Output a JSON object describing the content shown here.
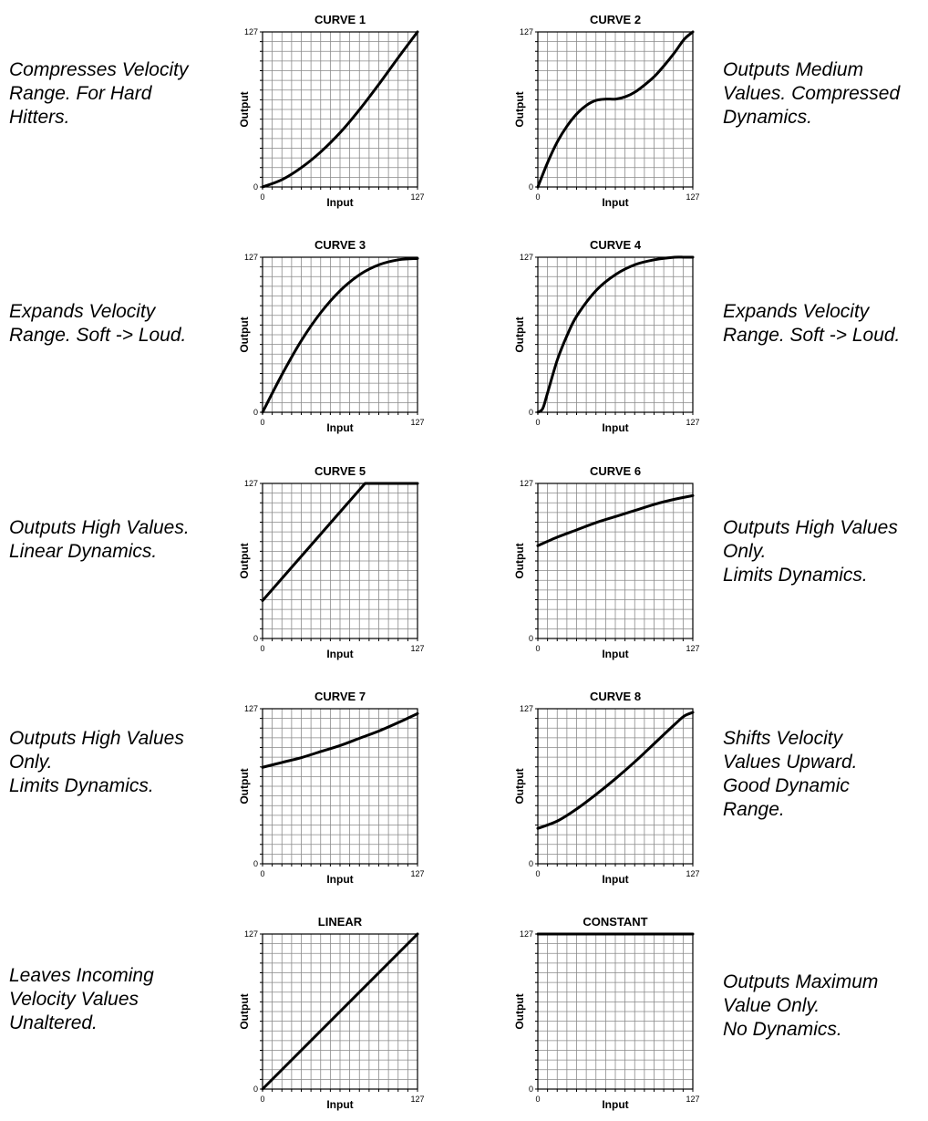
{
  "chart_data": [
    {
      "type": "line",
      "title": "CURVE 1",
      "xlabel": "Input",
      "ylabel": "Output",
      "xlim": [
        0,
        127
      ],
      "ylim": [
        0,
        127
      ],
      "x_ticks": [
        "0",
        "127"
      ],
      "y_ticks": [
        "0",
        "127"
      ],
      "grid": true,
      "x": [
        0,
        16,
        32,
        48,
        64,
        80,
        96,
        112,
        127
      ],
      "y": [
        0,
        6,
        16,
        29,
        45,
        64,
        85,
        107,
        127
      ],
      "description": [
        "Compresses Velocity",
        "Range. For Hard",
        "Hitters."
      ]
    },
    {
      "type": "line",
      "title": "CURVE 2",
      "xlabel": "Input",
      "ylabel": "Output",
      "xlim": [
        0,
        127
      ],
      "ylim": [
        0,
        127
      ],
      "x_ticks": [
        "0",
        "127"
      ],
      "y_ticks": [
        "0",
        "127"
      ],
      "grid": true,
      "x": [
        0,
        8,
        16,
        24,
        32,
        40,
        48,
        56,
        64,
        72,
        80,
        88,
        96,
        104,
        112,
        120,
        127
      ],
      "y": [
        0,
        20,
        37,
        50,
        60,
        67,
        71,
        72,
        72,
        74,
        78,
        84,
        91,
        100,
        110,
        121,
        127
      ],
      "description": [
        "Outputs Medium",
        "Values. Compressed",
        "Dynamics."
      ]
    },
    {
      "type": "line",
      "title": "CURVE 3",
      "xlabel": "Input",
      "ylabel": "Output",
      "xlim": [
        0,
        127
      ],
      "ylim": [
        0,
        127
      ],
      "x_ticks": [
        "0",
        "127"
      ],
      "y_ticks": [
        "0",
        "127"
      ],
      "grid": true,
      "x": [
        0,
        16,
        32,
        48,
        64,
        80,
        96,
        112,
        127
      ],
      "y": [
        0,
        31,
        59,
        82,
        100,
        113,
        121,
        125,
        126
      ],
      "description": [
        "Expands Velocity",
        "Range. Soft -> Loud."
      ]
    },
    {
      "type": "line",
      "title": "CURVE 4",
      "xlabel": "Input",
      "ylabel": "Output",
      "xlim": [
        0,
        127
      ],
      "ylim": [
        0,
        127
      ],
      "x_ticks": [
        "0",
        "127"
      ],
      "y_ticks": [
        "0",
        "127"
      ],
      "grid": true,
      "x": [
        0,
        4,
        8,
        16,
        24,
        32,
        48,
        64,
        80,
        96,
        112,
        120,
        127
      ],
      "y": [
        0,
        3,
        16,
        43,
        63,
        79,
        100,
        113,
        121,
        125,
        127,
        127,
        127
      ],
      "description": [
        "Expands Velocity",
        "Range. Soft -> Loud."
      ]
    },
    {
      "type": "line",
      "title": "CURVE 5",
      "xlabel": "Input",
      "ylabel": "Output",
      "xlim": [
        0,
        127
      ],
      "ylim": [
        0,
        127
      ],
      "x_ticks": [
        "0",
        "127"
      ],
      "y_ticks": [
        "0",
        "127"
      ],
      "grid": true,
      "x": [
        0,
        84,
        127
      ],
      "y": [
        31,
        127,
        127
      ],
      "description": [
        "Outputs High Values.",
        "Linear Dynamics."
      ]
    },
    {
      "type": "line",
      "title": "CURVE 6",
      "xlabel": "Input",
      "ylabel": "Output",
      "xlim": [
        0,
        127
      ],
      "ylim": [
        0,
        127
      ],
      "x_ticks": [
        "0",
        "127"
      ],
      "y_ticks": [
        "0",
        "127"
      ],
      "grid": true,
      "x": [
        0,
        16,
        32,
        48,
        64,
        80,
        96,
        112,
        127
      ],
      "y": [
        76,
        83,
        89,
        95,
        100,
        105,
        110,
        114,
        117
      ],
      "description": [
        "Outputs High Values",
        "Only.",
        "Limits Dynamics."
      ]
    },
    {
      "type": "line",
      "title": "CURVE 7",
      "xlabel": "Input",
      "ylabel": "Output",
      "xlim": [
        0,
        127
      ],
      "ylim": [
        0,
        127
      ],
      "x_ticks": [
        "0",
        "127"
      ],
      "y_ticks": [
        "0",
        "127"
      ],
      "grid": true,
      "x": [
        0,
        16,
        32,
        48,
        64,
        80,
        96,
        112,
        127
      ],
      "y": [
        79,
        83,
        87,
        92,
        97,
        103,
        109,
        116,
        123
      ],
      "description": [
        "Outputs High Values",
        "Only.",
        "Limits Dynamics."
      ]
    },
    {
      "type": "line",
      "title": "CURVE 8",
      "xlabel": "Input",
      "ylabel": "Output",
      "xlim": [
        0,
        127
      ],
      "ylim": [
        0,
        127
      ],
      "x_ticks": [
        "0",
        "127"
      ],
      "y_ticks": [
        "0",
        "127"
      ],
      "grid": true,
      "x": [
        0,
        16,
        32,
        48,
        64,
        80,
        96,
        112,
        120,
        127
      ],
      "y": [
        29,
        35,
        45,
        57,
        70,
        84,
        99,
        114,
        121,
        124
      ],
      "description": [
        "Shifts Velocity",
        "Values Upward.",
        "Good Dynamic",
        "Range."
      ]
    },
    {
      "type": "line",
      "title": "LINEAR",
      "xlabel": "Input",
      "ylabel": "Output",
      "xlim": [
        0,
        127
      ],
      "ylim": [
        0,
        127
      ],
      "x_ticks": [
        "0",
        "127"
      ],
      "y_ticks": [
        "0",
        "127"
      ],
      "grid": true,
      "x": [
        0,
        127
      ],
      "y": [
        0,
        127
      ],
      "description": [
        "Leaves Incoming",
        "Velocity Values",
        "Unaltered."
      ]
    },
    {
      "type": "line",
      "title": "CONSTANT",
      "xlabel": "Input",
      "ylabel": "Output",
      "xlim": [
        0,
        127
      ],
      "ylim": [
        0,
        127
      ],
      "x_ticks": [
        "0",
        "127"
      ],
      "y_ticks": [
        "0",
        "127"
      ],
      "grid": true,
      "x": [
        0,
        127
      ],
      "y": [
        127,
        127
      ],
      "description": [
        "Outputs Maximum",
        "Value Only.",
        "No Dynamics."
      ]
    }
  ]
}
